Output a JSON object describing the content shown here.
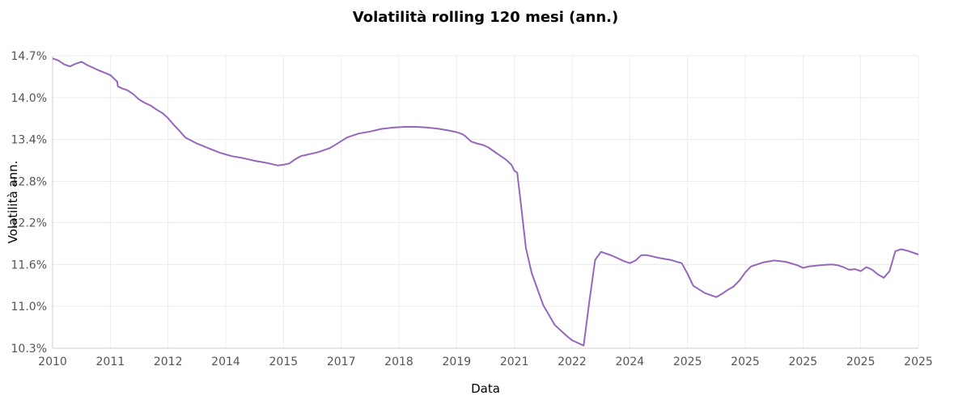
{
  "chart_data": {
    "type": "line",
    "title": "Volatilità rolling 120 mesi (ann.)",
    "xlabel": "Data",
    "ylabel": "Volatilità ann.",
    "xlim": [
      2010.0,
      2025.0
    ],
    "ylim": [
      10.3,
      14.7
    ],
    "x_ticks": [
      {
        "label": "2010",
        "x": 2010.0
      },
      {
        "label": "2011",
        "x": 2011.0
      },
      {
        "label": "2012",
        "x": 2012.0
      },
      {
        "label": "2014",
        "x": 2013.0
      },
      {
        "label": "2015",
        "x": 2014.0
      },
      {
        "label": "2017",
        "x": 2015.0
      },
      {
        "label": "2018",
        "x": 2016.0
      },
      {
        "label": "2019",
        "x": 2017.0
      },
      {
        "label": "2021",
        "x": 2018.0
      },
      {
        "label": "2022",
        "x": 2019.0
      },
      {
        "label": "2024",
        "x": 2020.0
      },
      {
        "label": "2025",
        "x": 2021.0
      },
      {
        "label": "2025",
        "x": 2022.0
      },
      {
        "label": "2025",
        "x": 2023.0
      },
      {
        "label": "2025",
        "x": 2024.0
      },
      {
        "label": "2025",
        "x": 2025.0
      }
    ],
    "y_ticks": [
      {
        "label": "10.3%",
        "y": 10.3
      },
      {
        "label": "11.0%",
        "y": 10.93
      },
      {
        "label": "11.6%",
        "y": 11.56
      },
      {
        "label": "12.2%",
        "y": 12.19
      },
      {
        "label": "12.8%",
        "y": 12.81
      },
      {
        "label": "13.4%",
        "y": 13.44
      },
      {
        "label": "14.0%",
        "y": 14.07
      },
      {
        "label": "14.7%",
        "y": 14.7
      }
    ],
    "grid": true,
    "series": [
      {
        "color": "#9467bd",
        "x": [
          2010.0,
          2010.1,
          2010.2,
          2010.3,
          2010.4,
          2010.5,
          2010.6,
          2010.8,
          2011.0,
          2011.12,
          2011.13,
          2011.2,
          2011.3,
          2011.4,
          2011.5,
          2011.6,
          2011.7,
          2011.8,
          2011.9,
          2012.0,
          2012.1,
          2012.2,
          2012.3,
          2012.5,
          2012.7,
          2012.9,
          2013.1,
          2013.3,
          2013.5,
          2013.7,
          2013.9,
          2014.0,
          2014.1,
          2014.2,
          2014.3,
          2014.4,
          2014.6,
          2014.7,
          2014.8,
          2014.9,
          2015.1,
          2015.3,
          2015.5,
          2015.7,
          2015.9,
          2016.1,
          2016.3,
          2016.5,
          2016.7,
          2016.9,
          2017.0,
          2017.1,
          2017.15,
          2017.2,
          2017.25,
          2017.35,
          2017.45,
          2017.55,
          2017.65,
          2017.75,
          2017.85,
          2017.95,
          2018.0,
          2018.05,
          2018.1,
          2018.2,
          2018.3,
          2018.5,
          2018.7,
          2018.9,
          2019.0,
          2019.1,
          2019.15,
          2019.2,
          2019.3,
          2019.4,
          2019.5,
          2019.7,
          2019.9,
          2020.0,
          2020.1,
          2020.2,
          2020.3,
          2020.5,
          2020.7,
          2020.9,
          2021.0,
          2021.1,
          2021.3,
          2021.5,
          2021.6,
          2021.7,
          2021.8,
          2021.9,
          2022.0,
          2022.1,
          2022.3,
          2022.5,
          2022.7,
          2022.9,
          2023.0,
          2023.1,
          2023.3,
          2023.5,
          2023.6,
          2023.7,
          2023.8,
          2023.9,
          2024.0,
          2024.1,
          2024.2,
          2024.3,
          2024.4,
          2024.5,
          2024.6,
          2024.7,
          2024.8,
          2024.9,
          2025.0
        ],
        "values": [
          14.66,
          14.63,
          14.57,
          14.54,
          14.58,
          14.61,
          14.56,
          14.48,
          14.41,
          14.31,
          14.24,
          14.21,
          14.18,
          14.12,
          14.04,
          13.99,
          13.95,
          13.89,
          13.84,
          13.76,
          13.66,
          13.57,
          13.47,
          13.38,
          13.31,
          13.24,
          13.19,
          13.16,
          13.12,
          13.09,
          13.05,
          13.06,
          13.08,
          13.14,
          13.19,
          13.21,
          13.25,
          13.28,
          13.31,
          13.36,
          13.47,
          13.53,
          13.56,
          13.6,
          13.62,
          13.63,
          13.63,
          13.62,
          13.6,
          13.57,
          13.55,
          13.52,
          13.49,
          13.45,
          13.41,
          13.38,
          13.36,
          13.32,
          13.26,
          13.2,
          13.14,
          13.06,
          12.97,
          12.94,
          12.57,
          11.81,
          11.43,
          10.95,
          10.65,
          10.49,
          10.42,
          10.38,
          10.36,
          10.34,
          11.01,
          11.63,
          11.75,
          11.69,
          11.61,
          11.58,
          11.62,
          11.7,
          11.7,
          11.66,
          11.63,
          11.58,
          11.42,
          11.24,
          11.13,
          11.07,
          11.12,
          11.18,
          11.23,
          11.32,
          11.44,
          11.53,
          11.59,
          11.62,
          11.6,
          11.55,
          11.51,
          11.53,
          11.55,
          11.56,
          11.55,
          11.52,
          11.48,
          11.49,
          11.46,
          11.52,
          11.48,
          11.41,
          11.36,
          11.46,
          11.76,
          11.79,
          11.77,
          11.74,
          11.71
        ]
      }
    ]
  }
}
